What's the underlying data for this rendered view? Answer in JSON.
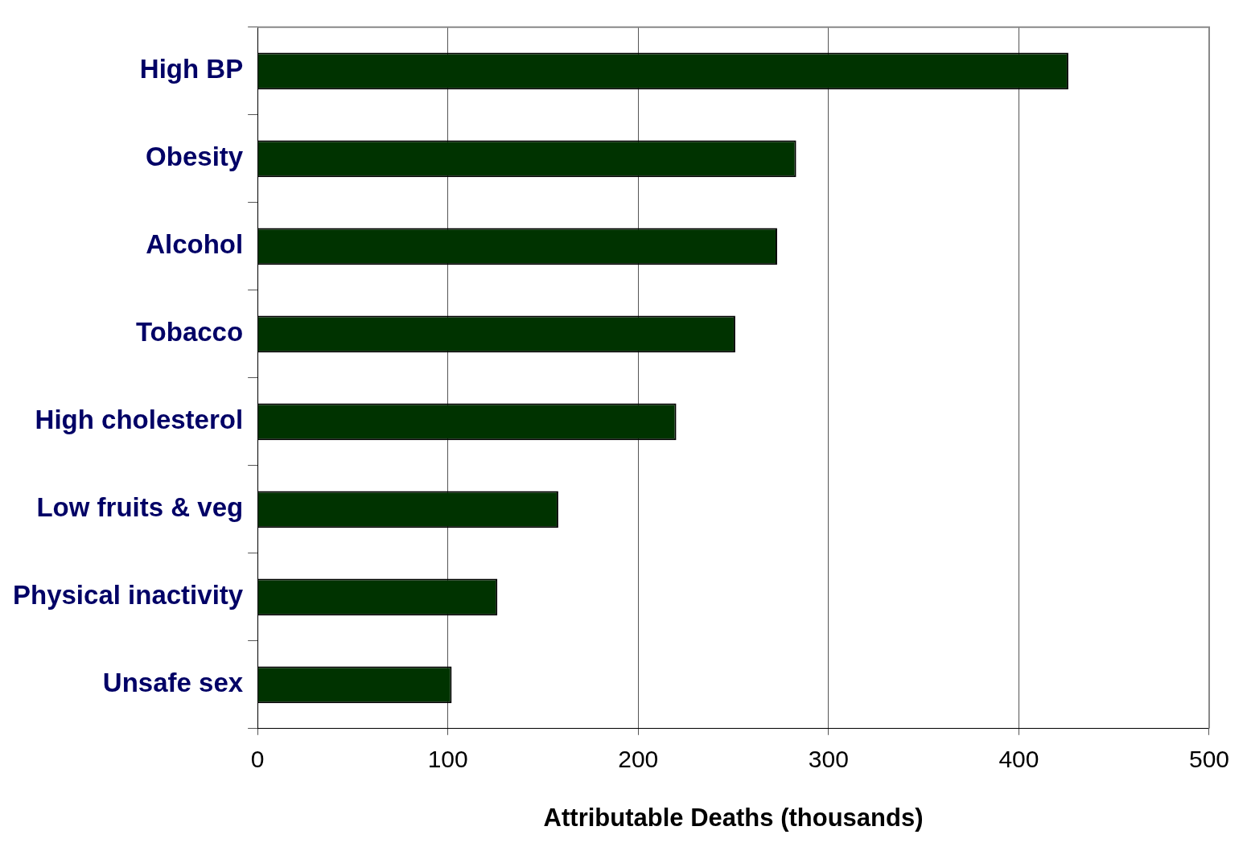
{
  "chart_data": {
    "type": "bar",
    "orientation": "horizontal",
    "xlabel": "Attributable Deaths (thousands)",
    "categories": [
      "High BP",
      "Obesity",
      "Alcohol",
      "Tobacco",
      "High cholesterol",
      "Low fruits & veg",
      "Physical inactivity",
      "Unsafe sex"
    ],
    "values": [
      426,
      283,
      273,
      251,
      220,
      158,
      126,
      102
    ],
    "color": "#003300",
    "xlim": [
      0,
      500
    ],
    "xticks": [
      0,
      100,
      200,
      300,
      400,
      500
    ],
    "grid": "x",
    "legend": false
  }
}
